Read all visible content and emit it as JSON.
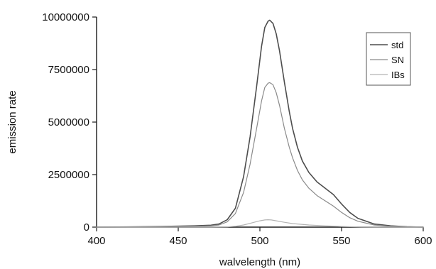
{
  "chart_data": {
    "type": "line",
    "title": "",
    "xlabel": "walvelength (nm)",
    "ylabel": "emission rate",
    "xlim": [
      400,
      600
    ],
    "ylim": [
      0,
      10000000
    ],
    "xticks": [
      400,
      450,
      500,
      550,
      600
    ],
    "xtick_labels": [
      "400",
      "450",
      "500",
      "550",
      "600"
    ],
    "yticks": [
      0,
      2500000,
      5000000,
      7500000,
      10000000
    ],
    "ytick_labels": [
      "0",
      "2500000",
      "5000000",
      "7500000",
      "10000000"
    ],
    "grid": false,
    "legend_position": "top-right",
    "legend_entries": [
      "std",
      "SN",
      "IBs"
    ],
    "series": [
      {
        "name": "std",
        "color": "#4d4d4d",
        "x": [
          400,
          420,
          440,
          460,
          470,
          475,
          480,
          485,
          490,
          494,
          498,
          501,
          503,
          505,
          506,
          508,
          510,
          512,
          515,
          518,
          520,
          523,
          526,
          530,
          535,
          540,
          545,
          550,
          555,
          560,
          570,
          580,
          590,
          600
        ],
        "y": [
          0,
          10000,
          30000,
          60000,
          90000,
          150000,
          350000,
          900000,
          2400000,
          4300000,
          6700000,
          8600000,
          9500000,
          9800000,
          9850000,
          9700000,
          9200000,
          8400000,
          6900000,
          5500000,
          4700000,
          3800000,
          3150000,
          2600000,
          2150000,
          1850000,
          1550000,
          1100000,
          700000,
          420000,
          150000,
          60000,
          20000,
          0
        ]
      },
      {
        "name": "SN",
        "color": "#8a8a8a",
        "x": [
          400,
          420,
          440,
          460,
          470,
          475,
          480,
          485,
          490,
          494,
          498,
          501,
          503,
          505,
          506,
          508,
          510,
          512,
          515,
          518,
          520,
          523,
          526,
          530,
          535,
          540,
          545,
          550,
          555,
          560,
          570,
          580,
          590,
          600
        ],
        "y": [
          0,
          8000,
          20000,
          40000,
          60000,
          100000,
          250000,
          650000,
          1650000,
          3000000,
          4700000,
          6000000,
          6650000,
          6850000,
          6880000,
          6780000,
          6400000,
          5800000,
          4700000,
          3800000,
          3300000,
          2700000,
          2250000,
          1850000,
          1500000,
          1250000,
          1000000,
          700000,
          450000,
          280000,
          100000,
          40000,
          10000,
          0
        ]
      },
      {
        "name": "IBs",
        "color": "#b3b3b3",
        "x": [
          400,
          440,
          470,
          480,
          485,
          490,
          495,
          500,
          503,
          505,
          507,
          510,
          515,
          520,
          530,
          540,
          550,
          560,
          580,
          600
        ],
        "y": [
          0,
          0,
          5000,
          15000,
          40000,
          100000,
          200000,
          300000,
          340000,
          350000,
          340000,
          300000,
          230000,
          170000,
          100000,
          60000,
          30000,
          10000,
          0,
          0
        ]
      }
    ]
  }
}
